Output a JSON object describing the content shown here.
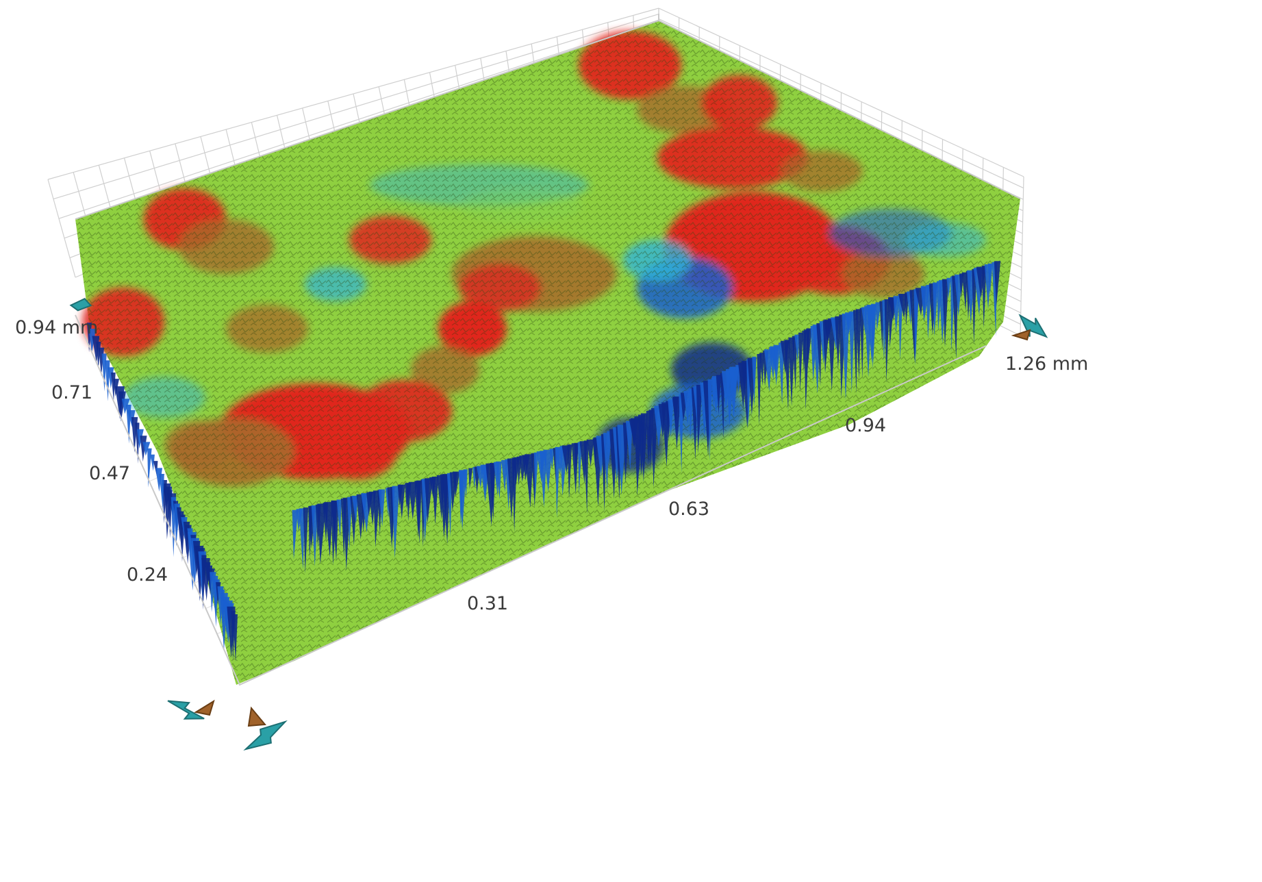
{
  "y_axis": {
    "ticks": [
      "0.24",
      "0.47",
      "0.71"
    ],
    "max_label": "0.94 mm"
  },
  "x_axis": {
    "ticks": [
      "0.31",
      "0.63",
      "0.94"
    ],
    "max_label": "1.26 mm"
  },
  "colormap": [
    "#0d2a8c",
    "#1a5fcf",
    "#2fb4d8",
    "#7dd35a",
    "#9ccf2e",
    "#a86a2a",
    "#e0261e"
  ],
  "controls": {
    "rotate_arrow_color": "#2aa0a6",
    "tilt_arrow_color": "#a0622a",
    "icons": [
      "rotate-left-icon",
      "tilt-up-icon",
      "tilt-down-icon",
      "rotate-right-icon",
      "rotate-ccw-icon",
      "tilt-icon"
    ]
  }
}
